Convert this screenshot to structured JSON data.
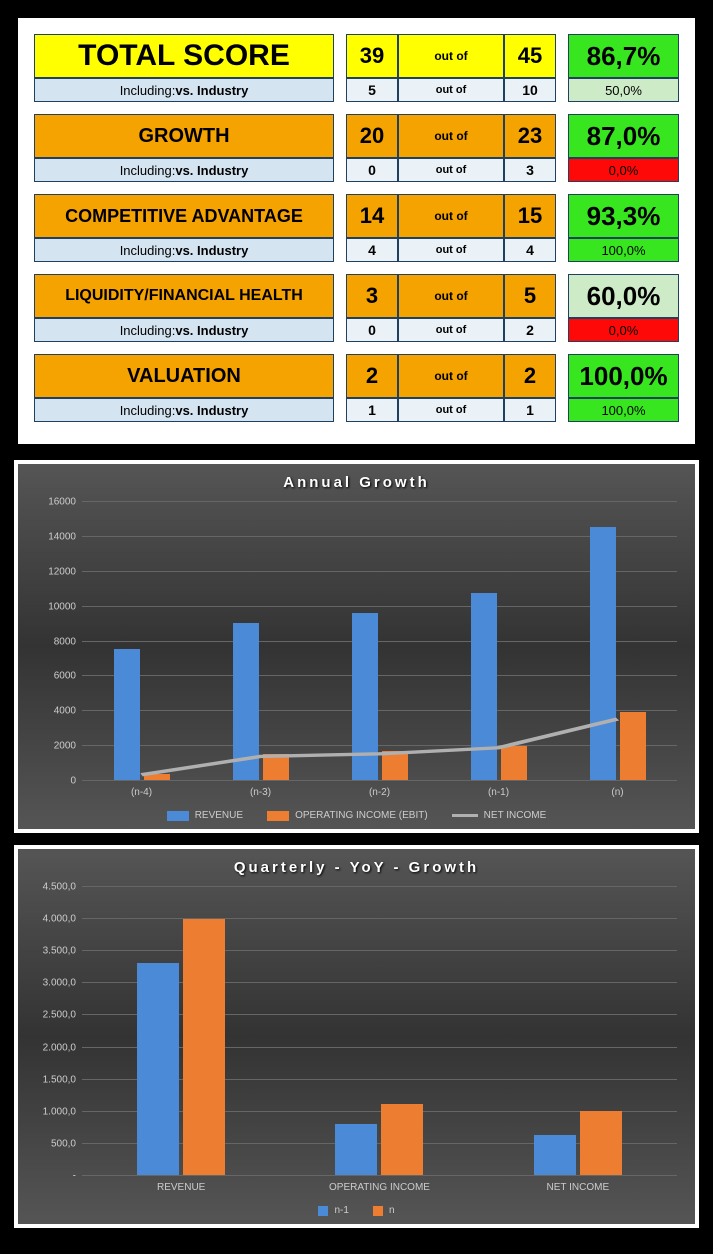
{
  "colors": {
    "yellow": "#ffff00",
    "orange": "#f4a300",
    "lightblue": "#d4e4f0",
    "lightblue2": "#eaf2f8",
    "green_strong": "#37e61f",
    "green_soft": "#cdebc6",
    "red": "#ff0808",
    "blue_bar": "#4a8ad6",
    "orange_bar": "#ed7d31",
    "grey_line": "#b0b0b0",
    "cell_border": "#204060"
  },
  "scores": [
    {
      "label": "TOTAL SCORE",
      "label_bg": "yellow",
      "label_fontsize": 30,
      "num": "39",
      "den": "45",
      "outof": "out of",
      "num_bg": "yellow",
      "pct": "86,7%",
      "pct_bg": "green_strong",
      "sub_label_pre": "Including: ",
      "sub_label_bold": "vs. Industry",
      "sub_bg": "lightblue",
      "sub_num": "5",
      "sub_den": "10",
      "sub_outof": "out of",
      "sub_num_bg": "lightblue2",
      "sub_pct": "50,0%",
      "sub_pct_bg": "green_soft"
    },
    {
      "label": "GROWTH",
      "label_bg": "orange",
      "label_fontsize": 20,
      "num": "20",
      "den": "23",
      "outof": "out of",
      "num_bg": "orange",
      "pct": "87,0%",
      "pct_bg": "green_strong",
      "sub_label_pre": "Including: ",
      "sub_label_bold": "vs. Industry",
      "sub_bg": "lightblue",
      "sub_num": "0",
      "sub_den": "3",
      "sub_outof": "out of",
      "sub_num_bg": "lightblue2",
      "sub_pct": "0,0%",
      "sub_pct_bg": "red"
    },
    {
      "label": "COMPETITIVE ADVANTAGE",
      "label_bg": "orange",
      "label_fontsize": 18,
      "num": "14",
      "den": "15",
      "outof": "out of",
      "num_bg": "orange",
      "pct": "93,3%",
      "pct_bg": "green_strong",
      "sub_label_pre": "Including: ",
      "sub_label_bold": "vs. Industry",
      "sub_bg": "lightblue",
      "sub_num": "4",
      "sub_den": "4",
      "sub_outof": "out of",
      "sub_num_bg": "lightblue2",
      "sub_pct": "100,0%",
      "sub_pct_bg": "green_strong"
    },
    {
      "label": "LIQUIDITY/FINANCIAL HEALTH",
      "label_bg": "orange",
      "label_fontsize": 16,
      "num": "3",
      "den": "5",
      "outof": "out of",
      "num_bg": "orange",
      "pct": "60,0%",
      "pct_bg": "green_soft",
      "sub_label_pre": "Including: ",
      "sub_label_bold": "vs. Industry",
      "sub_bg": "lightblue",
      "sub_num": "0",
      "sub_den": "2",
      "sub_outof": "out of",
      "sub_num_bg": "lightblue2",
      "sub_pct": "0,0%",
      "sub_pct_bg": "red"
    },
    {
      "label": "VALUATION",
      "label_bg": "orange",
      "label_fontsize": 20,
      "num": "2",
      "den": "2",
      "outof": "out of",
      "num_bg": "orange",
      "pct": "100,0%",
      "pct_bg": "green_strong",
      "sub_label_pre": "Including: ",
      "sub_label_bold": "vs. Industry",
      "sub_bg": "lightblue",
      "sub_num": "1",
      "sub_den": "1",
      "sub_outof": "out of",
      "sub_num_bg": "lightblue2",
      "sub_pct": "100,0%",
      "sub_pct_bg": "green_strong"
    }
  ],
  "annual_chart": {
    "title": "Annual Growth",
    "type": "bar+line",
    "ymax": 16000,
    "ytick_step": 2000,
    "categories": [
      "(n-4)",
      "(n-3)",
      "(n-2)",
      "(n-1)",
      "(n)"
    ],
    "series": [
      {
        "name": "REVENUE",
        "color": "blue_bar",
        "values": [
          7500,
          9000,
          9600,
          10700,
          14500
        ]
      },
      {
        "name": "OPERATING INCOME (EBIT)",
        "color": "orange_bar",
        "values": [
          350,
          1500,
          1650,
          1950,
          3900
        ]
      }
    ],
    "line": {
      "name": "NET INCOME",
      "color": "grey_line",
      "values": [
        300,
        1350,
        1500,
        1850,
        3500
      ]
    }
  },
  "quarterly_chart": {
    "title": "Quarterly - YoY - Growth",
    "type": "bar",
    "ymax": 4500,
    "ytick_step": 500,
    "ytick_format": "european",
    "categories": [
      "REVENUE",
      "OPERATING INCOME",
      "NET INCOME"
    ],
    "series": [
      {
        "name": "n-1",
        "color": "blue_bar",
        "values": [
          3300,
          800,
          620
        ]
      },
      {
        "name": "n",
        "color": "orange_bar",
        "values": [
          3980,
          1100,
          1000
        ]
      }
    ]
  }
}
